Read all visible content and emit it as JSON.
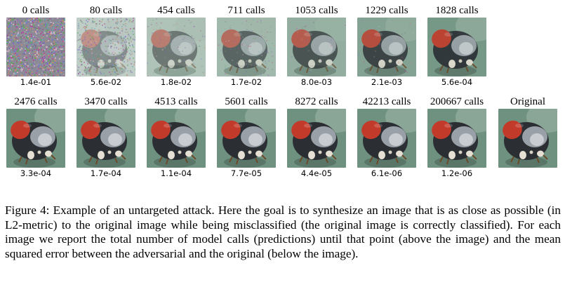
{
  "figure": {
    "row1": [
      {
        "calls": "0 calls",
        "mse": "1.4e-01",
        "stage": 0
      },
      {
        "calls": "80 calls",
        "mse": "5.6e-02",
        "stage": 1
      },
      {
        "calls": "454 calls",
        "mse": "1.8e-02",
        "stage": 2
      },
      {
        "calls": "711 calls",
        "mse": "1.7e-02",
        "stage": 3
      },
      {
        "calls": "1053 calls",
        "mse": "8.0e-03",
        "stage": 4
      },
      {
        "calls": "1229 calls",
        "mse": "2.1e-03",
        "stage": 5
      },
      {
        "calls": "1828 calls",
        "mse": "5.6e-04",
        "stage": 6
      }
    ],
    "row2": [
      {
        "calls": "2476 calls",
        "mse": "3.3e-04",
        "stage": 7
      },
      {
        "calls": "3470 calls",
        "mse": "1.7e-04",
        "stage": 7
      },
      {
        "calls": "4513 calls",
        "mse": "1.1e-04",
        "stage": 7
      },
      {
        "calls": "5601 calls",
        "mse": "7.7e-05",
        "stage": 7
      },
      {
        "calls": "8272 calls",
        "mse": "4.4e-05",
        "stage": 7
      },
      {
        "calls": "42213 calls",
        "mse": "6.1e-06",
        "stage": 7
      },
      {
        "calls": "200667 calls",
        "mse": "1.2e-06",
        "stage": 7
      },
      {
        "calls": "Original",
        "mse": "",
        "stage": 8
      }
    ]
  },
  "caption": "Figure 4: Example of an untargeted attack. Here the goal is to synthesize an image that is as close as possible (in L2-metric) to the original image while being misclassified (the original image is correctly classified). For each image we report the total number of model calls (predictions) until that point (above the image) and the mean squared error between the adversarial and the original (below the image).",
  "colors": {
    "background_green": "#6f9280",
    "shell_red": "#c23a2a",
    "body_dark": "#2b2e33",
    "head_grey": "#9aa0a8"
  }
}
